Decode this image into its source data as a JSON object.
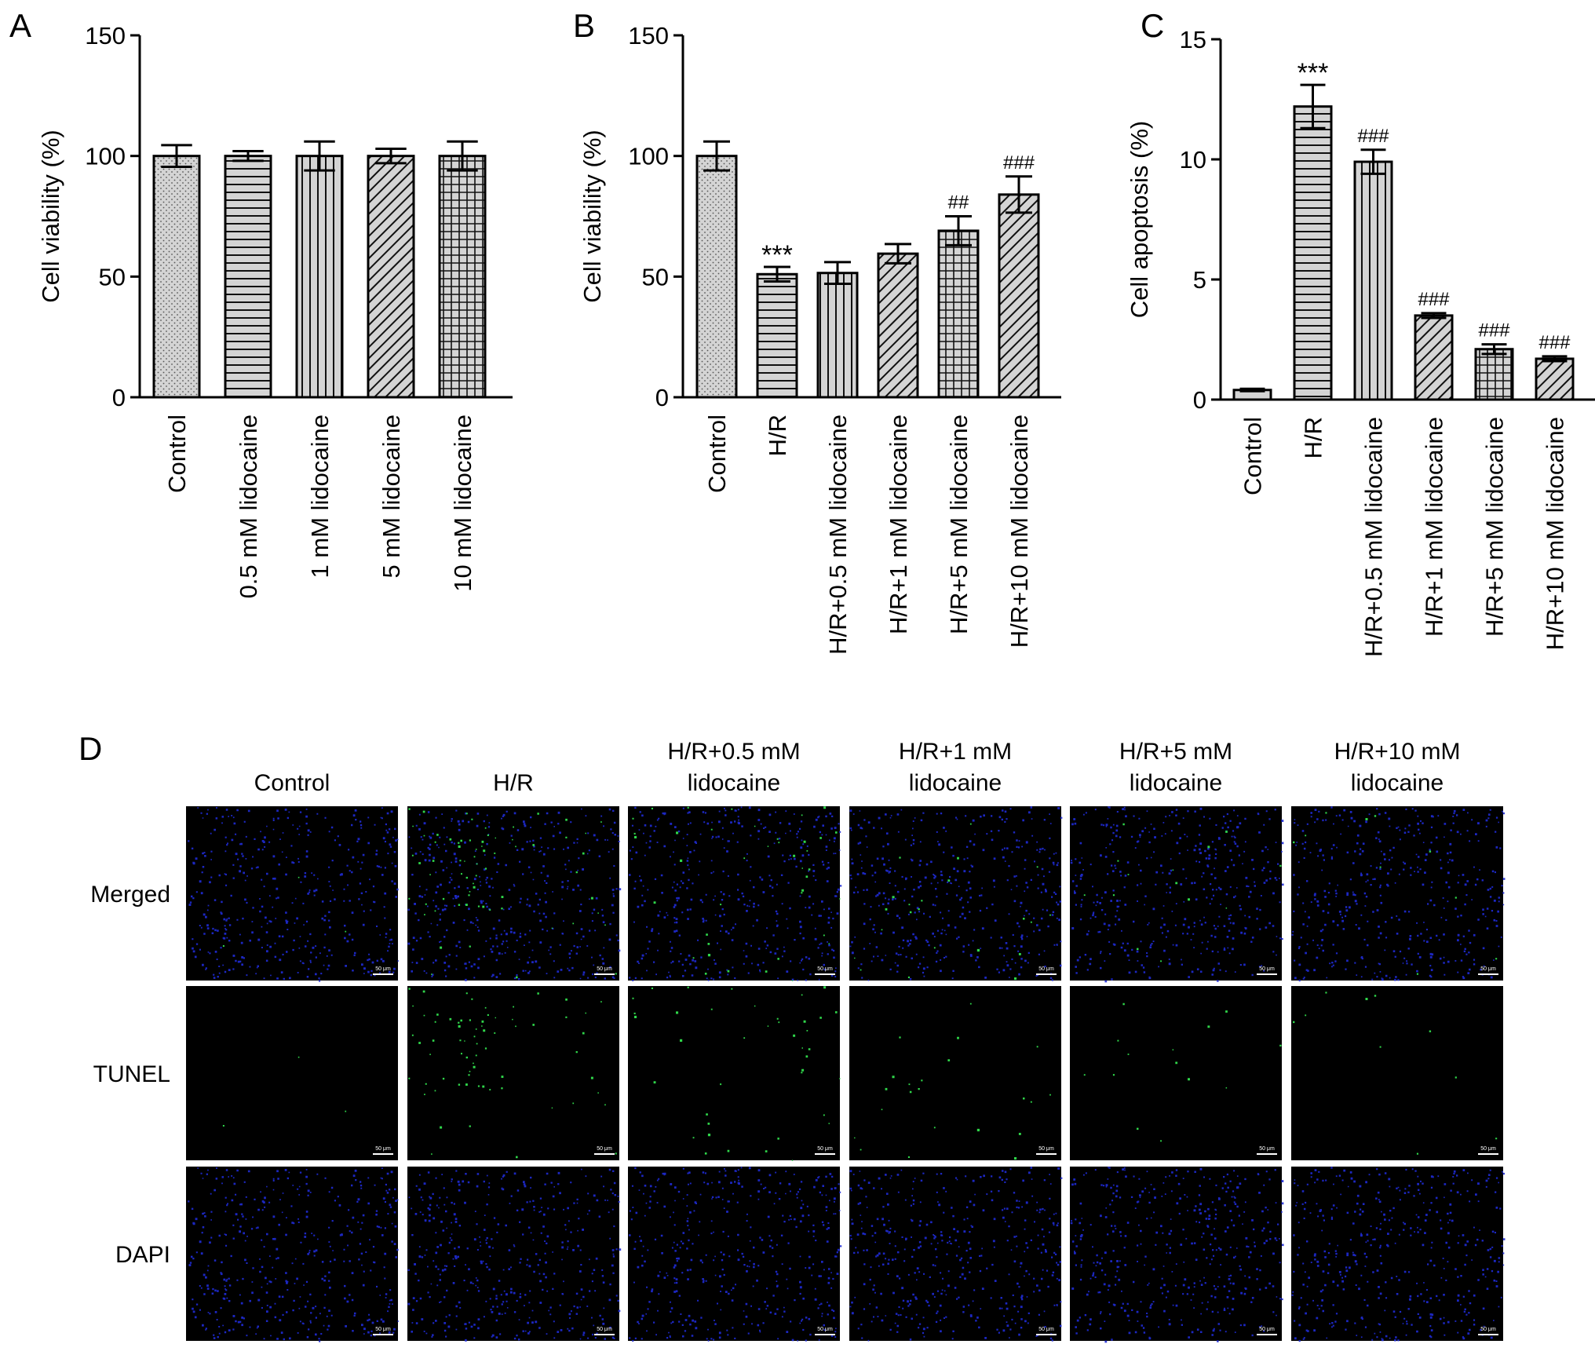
{
  "chart_data": [
    {
      "panel": "A",
      "type": "bar",
      "ylabel": "Cell viability (%)",
      "ylim": [
        0,
        150
      ],
      "yticks": [
        0,
        50,
        100,
        150
      ],
      "categories": [
        "Control",
        "0.5 mM lidocaine",
        "1 mM lidocaine",
        "5 mM lidocaine",
        "10 mM lidocaine"
      ],
      "values": [
        100,
        100,
        100,
        100,
        100
      ],
      "errors": [
        4.5,
        2,
        6,
        3,
        6
      ],
      "patterns": [
        "dots",
        "hlines",
        "vlines",
        "diag",
        "grid"
      ],
      "annotations": [
        "",
        "",
        "",
        "",
        ""
      ]
    },
    {
      "panel": "B",
      "type": "bar",
      "ylabel": "Cell viability (%)",
      "ylim": [
        0,
        150
      ],
      "yticks": [
        0,
        50,
        100,
        150
      ],
      "categories": [
        "Control",
        "H/R",
        "H/R+0.5 mM lidocaine",
        "H/R+1 mM lidocaine",
        "H/R+5 mM lidocaine",
        "H/R+10 mM lidocaine"
      ],
      "values": [
        100,
        51,
        51.5,
        59.5,
        69,
        84
      ],
      "errors": [
        6,
        3,
        4.5,
        4,
        6,
        7.5
      ],
      "patterns": [
        "dots",
        "hlines",
        "vlines",
        "diag",
        "grid",
        "diag"
      ],
      "annotations": [
        "",
        "***",
        "",
        "",
        "##",
        "###"
      ]
    },
    {
      "panel": "C",
      "type": "bar",
      "ylabel": "Cell apoptosis (%)",
      "ylim": [
        0,
        15
      ],
      "yticks": [
        0,
        5,
        10,
        15
      ],
      "categories": [
        "Control",
        "H/R",
        "H/R+0.5 mM lidocaine",
        "H/R+1 mM lidocaine",
        "H/R+5 mM lidocaine",
        "H/R+10 mM lidocaine"
      ],
      "values": [
        0.4,
        12.2,
        9.9,
        3.5,
        2.1,
        1.7
      ],
      "errors": [
        0.05,
        0.9,
        0.5,
        0.1,
        0.2,
        0.1
      ],
      "patterns": [
        "none",
        "hlines",
        "vlines",
        "diag",
        "grid",
        "diag"
      ],
      "annotations": [
        "",
        "***",
        "###",
        "###",
        "###",
        "###"
      ]
    }
  ],
  "micrographs": {
    "columns": [
      [
        "Control"
      ],
      [
        "H/R"
      ],
      [
        "H/R+0.5 mM",
        "lidocaine"
      ],
      [
        "H/R+1 mM",
        "lidocaine"
      ],
      [
        "H/R+5 mM",
        "lidocaine"
      ],
      [
        "H/R+10 mM",
        "lidocaine"
      ]
    ],
    "rows": [
      "Merged",
      "TUNEL",
      "DAPI"
    ],
    "scale_bar": "50 μm",
    "colors": {
      "nucleus": "#1f2bd6",
      "tunel": "#2fd64a",
      "background": "#000000"
    }
  },
  "panels": [
    "A",
    "B",
    "C",
    "D"
  ]
}
